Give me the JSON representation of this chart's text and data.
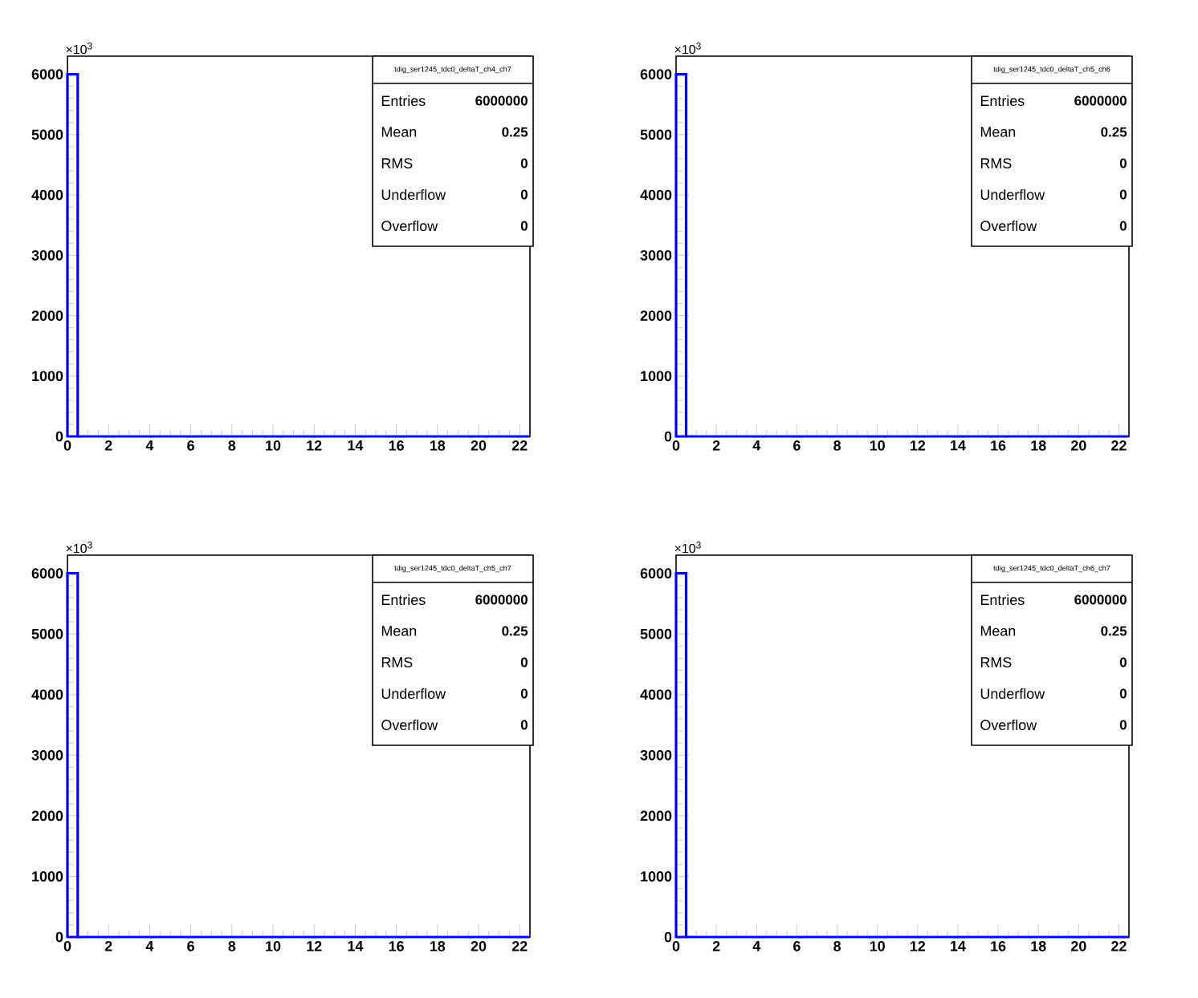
{
  "chart_data": [
    {
      "type": "histogram",
      "bins": [
        0,
        0.5,
        1,
        1.5,
        2,
        2.5,
        3,
        3.5,
        4,
        4.5,
        5,
        5.5,
        6,
        6.5,
        7,
        7.5,
        8,
        8.5,
        9,
        9.5,
        10,
        10.5,
        11,
        11.5,
        12,
        12.5,
        13,
        13.5,
        14,
        14.5,
        15,
        15.5,
        16,
        16.5,
        17,
        17.5,
        18,
        18.5,
        19,
        19.5,
        20,
        20.5,
        21,
        21.5,
        22,
        22.5
      ],
      "values": [
        6000,
        0,
        0,
        0,
        0,
        0,
        0,
        0,
        0,
        0,
        0,
        0,
        0,
        0,
        0,
        0,
        0,
        0,
        0,
        0,
        0,
        0,
        0,
        0,
        0,
        0,
        0,
        0,
        0,
        0,
        0,
        0,
        0,
        0,
        0,
        0,
        0,
        0,
        0,
        0,
        0,
        0,
        0,
        0,
        0
      ],
      "color": "#0000ff",
      "xlim": [
        0,
        22.5
      ],
      "xticks": [
        0,
        2,
        4,
        6,
        8,
        10,
        12,
        14,
        16,
        18,
        20,
        22
      ],
      "ylim": [
        0,
        6300
      ],
      "yticks": [
        0,
        1000,
        2000,
        3000,
        4000,
        5000,
        6000
      ],
      "annotations": [
        "×10$^{3}$",
        "tdig_ser1245_tdc0_deltaT_ch4_ch7",
        "Entries",
        "6000000",
        "Mean",
        "0.25",
        "RMS",
        "0",
        "Underflow",
        "0",
        "Overflow",
        "0"
      ]
    },
    {
      "type": "histogram",
      "bins": [
        0,
        0.5,
        1,
        1.5,
        2,
        2.5,
        3,
        3.5,
        4,
        4.5,
        5,
        5.5,
        6,
        6.5,
        7,
        7.5,
        8,
        8.5,
        9,
        9.5,
        10,
        10.5,
        11,
        11.5,
        12,
        12.5,
        13,
        13.5,
        14,
        14.5,
        15,
        15.5,
        16,
        16.5,
        17,
        17.5,
        18,
        18.5,
        19,
        19.5,
        20,
        20.5,
        21,
        21.5,
        22,
        22.5
      ],
      "values": [
        6000,
        0,
        0,
        0,
        0,
        0,
        0,
        0,
        0,
        0,
        0,
        0,
        0,
        0,
        0,
        0,
        0,
        0,
        0,
        0,
        0,
        0,
        0,
        0,
        0,
        0,
        0,
        0,
        0,
        0,
        0,
        0,
        0,
        0,
        0,
        0,
        0,
        0,
        0,
        0,
        0,
        0,
        0,
        0,
        0
      ],
      "color": "#0000ff",
      "xlim": [
        0,
        22.5
      ],
      "xticks": [
        0,
        2,
        4,
        6,
        8,
        10,
        12,
        14,
        16,
        18,
        20,
        22
      ],
      "ylim": [
        0,
        6300
      ],
      "yticks": [
        0,
        1000,
        2000,
        3000,
        4000,
        5000,
        6000
      ],
      "annotations": [
        "×10$^{3}$",
        "tdig_ser1245_tdc0_deltaT_ch5_ch6",
        "Entries",
        "6000000",
        "Mean",
        "0.25",
        "RMS",
        "0",
        "Underflow",
        "0",
        "Overflow",
        "0"
      ]
    },
    {
      "type": "histogram",
      "bins": [
        0,
        0.5,
        1,
        1.5,
        2,
        2.5,
        3,
        3.5,
        4,
        4.5,
        5,
        5.5,
        6,
        6.5,
        7,
        7.5,
        8,
        8.5,
        9,
        9.5,
        10,
        10.5,
        11,
        11.5,
        12,
        12.5,
        13,
        13.5,
        14,
        14.5,
        15,
        15.5,
        16,
        16.5,
        17,
        17.5,
        18,
        18.5,
        19,
        19.5,
        20,
        20.5,
        21,
        21.5,
        22,
        22.5
      ],
      "values": [
        6000,
        0,
        0,
        0,
        0,
        0,
        0,
        0,
        0,
        0,
        0,
        0,
        0,
        0,
        0,
        0,
        0,
        0,
        0,
        0,
        0,
        0,
        0,
        0,
        0,
        0,
        0,
        0,
        0,
        0,
        0,
        0,
        0,
        0,
        0,
        0,
        0,
        0,
        0,
        0,
        0,
        0,
        0,
        0,
        0
      ],
      "color": "#0000ff",
      "xlim": [
        0,
        22.5
      ],
      "xticks": [
        0,
        2,
        4,
        6,
        8,
        10,
        12,
        14,
        16,
        18,
        20,
        22
      ],
      "ylim": [
        0,
        6300
      ],
      "yticks": [
        0,
        1000,
        2000,
        3000,
        4000,
        5000,
        6000
      ],
      "annotations": [
        "×10$^{3}$",
        "tdig_ser1245_tdc0_deltaT_ch5_ch7",
        "Entries",
        "6000000",
        "Mean",
        "0.25",
        "RMS",
        "0",
        "Underflow",
        "0",
        "Overflow",
        "0"
      ]
    },
    {
      "type": "histogram",
      "bins": [
        0,
        0.5,
        1,
        1.5,
        2,
        2.5,
        3,
        3.5,
        4,
        4.5,
        5,
        5.5,
        6,
        6.5,
        7,
        7.5,
        8,
        8.5,
        9,
        9.5,
        10,
        10.5,
        11,
        11.5,
        12,
        12.5,
        13,
        13.5,
        14,
        14.5,
        15,
        15.5,
        16,
        16.5,
        17,
        17.5,
        18,
        18.5,
        19,
        19.5,
        20,
        20.5,
        21,
        21.5,
        22,
        22.5
      ],
      "values": [
        6000,
        0,
        0,
        0,
        0,
        0,
        0,
        0,
        0,
        0,
        0,
        0,
        0,
        0,
        0,
        0,
        0,
        0,
        0,
        0,
        0,
        0,
        0,
        0,
        0,
        0,
        0,
        0,
        0,
        0,
        0,
        0,
        0,
        0,
        0,
        0,
        0,
        0,
        0,
        0,
        0,
        0,
        0,
        0,
        0
      ],
      "color": "#0000ff",
      "xlim": [
        0,
        22.5
      ],
      "xticks": [
        0,
        2,
        4,
        6,
        8,
        10,
        12,
        14,
        16,
        18,
        20,
        22
      ],
      "ylim": [
        0,
        6300
      ],
      "yticks": [
        0,
        1000,
        2000,
        3000,
        4000,
        5000,
        6000
      ],
      "annotations": [
        "×10$^{3}$",
        "tdig_ser1245_tdc0_deltaT_ch6_ch7",
        "Entries",
        "6000000",
        "Mean",
        "0.25",
        "RMS",
        "0",
        "Underflow",
        "0",
        "Overflow",
        "0"
      ]
    }
  ]
}
